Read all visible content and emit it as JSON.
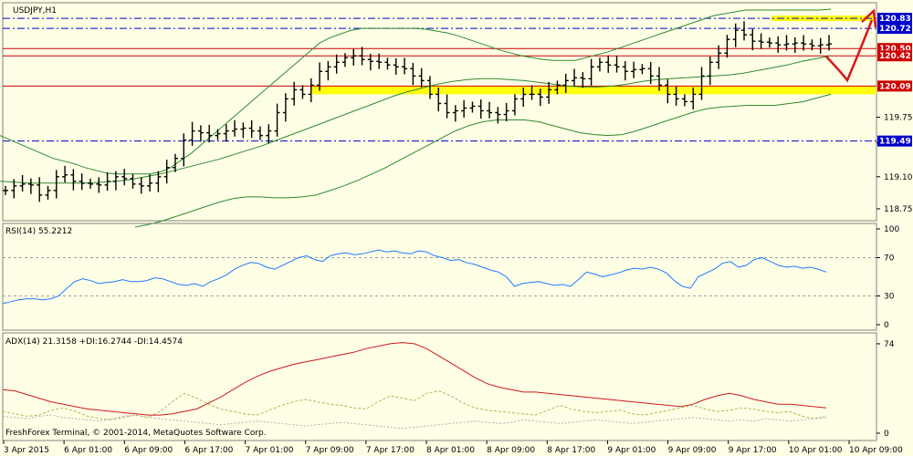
{
  "chart_data": {
    "type": "line",
    "symbol_label": "USDJPY,H1",
    "footer": "FreshForex Terminal, © 2001-2014, MetaQuotes Software Corp.",
    "x_labels": [
      "3 Apr 2015",
      "6 Apr 01:00",
      "6 Apr 09:00",
      "6 Apr 17:00",
      "7 Apr 01:00",
      "7 Apr 09:00",
      "7 Apr 17:00",
      "8 Apr 01:00",
      "8 Apr 09:00",
      "8 Apr 17:00",
      "9 Apr 01:00",
      "9 Apr 09:00",
      "9 Apr 17:00",
      "10 Apr 01:00",
      "10 Apr 09:00"
    ],
    "price_pane": {
      "ylim": [
        118.62,
        121.0
      ],
      "y_ticks": [
        "119.75",
        "119.47",
        "119.10",
        "118.75"
      ],
      "levels": [
        {
          "value": 120.83,
          "label": "120.83",
          "color": "#0000cc",
          "style": "dashdot"
        },
        {
          "value": 120.72,
          "label": "120.72",
          "color": "#0000cc",
          "style": "dashdot"
        },
        {
          "value": 120.5,
          "label": "120.50",
          "color": "#cc0000",
          "style": "solid"
        },
        {
          "value": 120.42,
          "label": "120.42",
          "color": "#cc0000",
          "style": "solid"
        },
        {
          "value": 120.09,
          "label": "120.09",
          "color": "#cc0000",
          "style": "solid"
        },
        {
          "value": 119.49,
          "label": "119.49",
          "color": "#0000cc",
          "style": "dashdot"
        }
      ],
      "support_zone": [
        120.0,
        120.09
      ],
      "resistance_zone": [
        120.8,
        120.86
      ],
      "close": [
        118.95,
        119.0,
        119.02,
        119.01,
        118.9,
        118.95,
        119.1,
        119.12,
        119.05,
        119.03,
        119.02,
        119.01,
        119.05,
        119.1,
        119.08,
        119.02,
        119.0,
        119.03,
        119.1,
        119.2,
        119.3,
        119.5,
        119.6,
        119.58,
        119.55,
        119.57,
        119.6,
        119.62,
        119.63,
        119.6,
        119.55,
        119.6,
        119.8,
        119.95,
        120.05,
        120.0,
        120.1,
        120.25,
        120.3,
        120.35,
        120.4,
        120.42,
        120.38,
        120.36,
        120.35,
        120.32,
        120.3,
        120.28,
        120.2,
        120.15,
        120.0,
        119.9,
        119.8,
        119.82,
        119.85,
        119.87,
        119.82,
        119.8,
        119.78,
        119.82,
        119.95,
        120.0,
        120.0,
        119.97,
        120.05,
        120.1,
        120.15,
        120.18,
        120.17,
        120.3,
        120.35,
        120.32,
        120.3,
        120.25,
        120.27,
        120.28,
        120.2,
        120.1,
        120.0,
        119.95,
        119.92,
        120.0,
        120.2,
        120.35,
        120.45,
        120.6,
        120.7,
        120.65,
        120.58,
        120.57,
        120.56,
        120.54,
        120.55,
        120.56,
        120.55,
        120.53,
        120.54,
        120.55
      ],
      "bb_upper": [
        119.55,
        119.5,
        119.45,
        119.4,
        119.35,
        119.3,
        119.27,
        119.24,
        119.2,
        119.17,
        119.14,
        119.13,
        119.13,
        119.13,
        119.13,
        119.15,
        119.2,
        119.28,
        119.36,
        119.46,
        119.56,
        119.66,
        119.76,
        119.86,
        119.96,
        120.06,
        120.16,
        120.26,
        120.36,
        120.46,
        120.56,
        120.62,
        120.66,
        120.7,
        120.72,
        120.72,
        120.72,
        120.72,
        120.72,
        120.72,
        120.71,
        120.69,
        120.67,
        120.64,
        120.6,
        120.56,
        120.52,
        120.48,
        120.45,
        120.42,
        120.4,
        120.38,
        120.37,
        120.37,
        120.37,
        120.4,
        120.43,
        120.46,
        120.5,
        120.54,
        120.58,
        120.62,
        120.66,
        120.7,
        120.74,
        120.78,
        120.82,
        120.86,
        120.88,
        120.9,
        120.92,
        120.92,
        120.92,
        120.92,
        120.92,
        120.92,
        120.92,
        120.92,
        120.93
      ],
      "bb_middle": [
        119.05,
        119.04,
        119.03,
        119.03,
        119.03,
        119.03,
        119.03,
        119.04,
        119.05,
        119.07,
        119.1,
        119.13,
        119.17,
        119.21,
        119.25,
        119.29,
        119.34,
        119.39,
        119.44,
        119.5,
        119.56,
        119.62,
        119.68,
        119.74,
        119.8,
        119.86,
        119.92,
        119.98,
        120.03,
        120.07,
        120.11,
        120.14,
        120.16,
        120.17,
        120.17,
        120.16,
        120.15,
        120.13,
        120.11,
        120.09,
        120.08,
        120.08,
        120.09,
        120.11,
        120.14,
        120.16,
        120.17,
        120.18,
        120.19,
        120.2,
        120.21,
        120.23,
        120.26,
        120.29,
        120.32,
        120.36,
        120.39,
        120.42
      ],
      "bb_lower": [
        118.55,
        118.58,
        118.62,
        118.67,
        118.72,
        118.77,
        118.82,
        118.86,
        118.88,
        118.88,
        118.87,
        118.87,
        118.88,
        118.9,
        118.95,
        119.0,
        119.06,
        119.13,
        119.2,
        119.28,
        119.36,
        119.44,
        119.52,
        119.6,
        119.66,
        119.7,
        119.72,
        119.72,
        119.72,
        119.7,
        119.66,
        119.62,
        119.58,
        119.56,
        119.55,
        119.56,
        119.6,
        119.65,
        119.7,
        119.75,
        119.8,
        119.84,
        119.86,
        119.87,
        119.88,
        119.88,
        119.88,
        119.9,
        119.92,
        119.96,
        120.0
      ]
    },
    "rsi_pane": {
      "label": "RSI(14) 55.2212",
      "ylim": [
        0,
        100
      ],
      "y_ticks": [
        "100",
        "70",
        "30",
        "0"
      ],
      "levels": [
        70,
        30
      ],
      "values": [
        22,
        24,
        26,
        27,
        27,
        26,
        27,
        30,
        38,
        45,
        48,
        46,
        43,
        44,
        45,
        47,
        45,
        45,
        46,
        49,
        48,
        45,
        42,
        41,
        43,
        40,
        45,
        48,
        52,
        58,
        62,
        65,
        64,
        60,
        58,
        62,
        66,
        70,
        72,
        68,
        66,
        72,
        74,
        75,
        73,
        74,
        76,
        78,
        76,
        77,
        75,
        74,
        77,
        76,
        72,
        70,
        67,
        68,
        65,
        63,
        60,
        57,
        55,
        50,
        40,
        43,
        44,
        45,
        43,
        41,
        42,
        40,
        47,
        55,
        53,
        50,
        52,
        54,
        57,
        59,
        58,
        60,
        58,
        54,
        46,
        40,
        38,
        50,
        54,
        58,
        64,
        66,
        60,
        62,
        68,
        70,
        66,
        62,
        60,
        61,
        59,
        60,
        58,
        55
      ]
    },
    "adx_pane": {
      "label": "ADX(14) 21.3158 +DI:16.2744 -DI:14.4574",
      "ylim": [
        0,
        80
      ],
      "y_ticks": [
        "74",
        "0"
      ],
      "adx": [
        36,
        35,
        32,
        29,
        26,
        24,
        22,
        20,
        19,
        18,
        17,
        16,
        15,
        15,
        16,
        18,
        20,
        25,
        30,
        36,
        42,
        47,
        51,
        54,
        57,
        59,
        61,
        63,
        65,
        67,
        70,
        72,
        74,
        75,
        74,
        70,
        64,
        58,
        52,
        46,
        41,
        38,
        36,
        34,
        34,
        33,
        32,
        31,
        30,
        29,
        28,
        27,
        26,
        25,
        24,
        23,
        22,
        24,
        28,
        31,
        33,
        31,
        28,
        26,
        24,
        24,
        23,
        22,
        21
      ],
      "plus_di": [
        18,
        16,
        14,
        15,
        19,
        21,
        18,
        14,
        12,
        11,
        13,
        15,
        13,
        18,
        26,
        33,
        29,
        24,
        20,
        18,
        16,
        15,
        19,
        23,
        26,
        28,
        26,
        24,
        23,
        21,
        20,
        26,
        31,
        29,
        27,
        33,
        35,
        31,
        25,
        21,
        19,
        18,
        17,
        16,
        15,
        19,
        23,
        20,
        18,
        17,
        18,
        19,
        16,
        15,
        17,
        19,
        21,
        23,
        20,
        18,
        19,
        21,
        20,
        18,
        17,
        18,
        14,
        12,
        13
      ],
      "minus_di": [
        14,
        13,
        12,
        14,
        15,
        13,
        12,
        11,
        10,
        12,
        14,
        15,
        13,
        12,
        11,
        10,
        9,
        8,
        7,
        8,
        9,
        10,
        9,
        8,
        7,
        6,
        7,
        8,
        9,
        8,
        7,
        6,
        5,
        4,
        5,
        6,
        7,
        8,
        9,
        10,
        9,
        8,
        9,
        11,
        10,
        9,
        8,
        9,
        10,
        11,
        10,
        9,
        8,
        9,
        10,
        11,
        12,
        13,
        12,
        11,
        10,
        11,
        10,
        12,
        11,
        10,
        11,
        12,
        14
      ]
    }
  }
}
